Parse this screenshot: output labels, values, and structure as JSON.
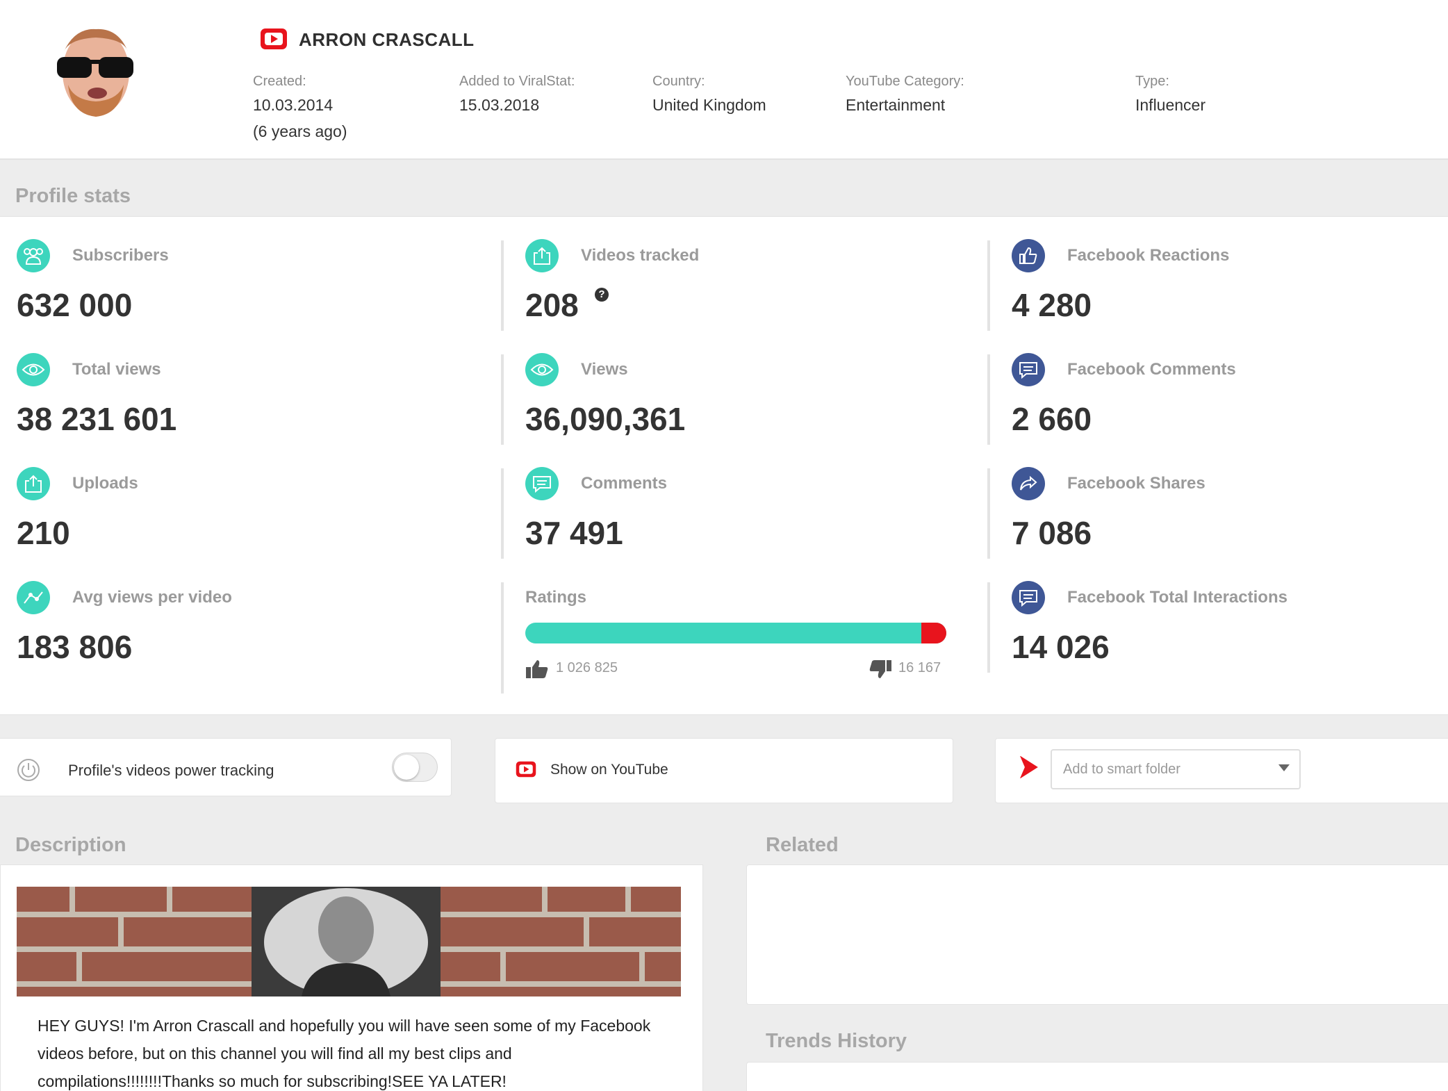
{
  "header": {
    "channel_name": "ARRON CRASCALL",
    "meta": [
      {
        "label": "Created:",
        "value": "10.03.2014",
        "extra": "(6 years ago)"
      },
      {
        "label": "Added to ViralStat:",
        "value": "15.03.2018"
      },
      {
        "label": "Country:",
        "value": "United Kingdom"
      },
      {
        "label": "YouTube Category:",
        "value": "Entertainment"
      },
      {
        "label": "Type:",
        "value": "Influencer"
      }
    ]
  },
  "profile_stats": {
    "heading": "Profile stats",
    "col1": [
      {
        "label": "Subscribers",
        "value": "632 000",
        "icon": "users-icon"
      },
      {
        "label": "Total views",
        "value": "38 231 601",
        "icon": "eye-icon"
      },
      {
        "label": "Uploads",
        "value": "210",
        "icon": "upload-icon"
      },
      {
        "label": "Avg views per video",
        "value": "183 806",
        "icon": "trend-line-icon"
      }
    ],
    "col2": [
      {
        "label": "Videos tracked",
        "value": "208",
        "icon": "upload-icon",
        "help": "?"
      },
      {
        "label": "Views",
        "value": "36,090,361",
        "icon": "eye-icon"
      },
      {
        "label": "Comments",
        "value": "37 491",
        "icon": "comment-icon"
      }
    ],
    "ratings": {
      "label": "Ratings",
      "likes": "1 026 825",
      "dislikes": "16 167",
      "like_ratio": 0.9845
    },
    "col3": [
      {
        "label": "Facebook Reactions",
        "value": "4 280",
        "icon": "thumbs-up-icon"
      },
      {
        "label": "Facebook Comments",
        "value": "2 660",
        "icon": "comment-icon"
      },
      {
        "label": "Facebook Shares",
        "value": "7 086",
        "icon": "share-icon"
      },
      {
        "label": "Facebook Total Interactions",
        "value": "14 026",
        "icon": "comment-icon"
      }
    ]
  },
  "actions": {
    "power_tracking_label": "Profile's videos power tracking",
    "power_tracking_on": false,
    "show_youtube_label": "Show on YouTube",
    "smart_folder_placeholder": "Add to smart folder"
  },
  "description": {
    "heading": "Description",
    "text": "HEY GUYS! I'm Arron Crascall and hopefully you will have seen some of my Facebook videos before, but on this channel you will find all my best clips and compilations!!!!!!!!Thanks so much for subscribing!SEE YA LATER!"
  },
  "related": {
    "heading": "Related"
  },
  "trends": {
    "heading": "Trends History"
  },
  "colors": {
    "teal": "#3dd5bd",
    "navy": "#3f5796",
    "youtube_red": "#e8141d"
  }
}
